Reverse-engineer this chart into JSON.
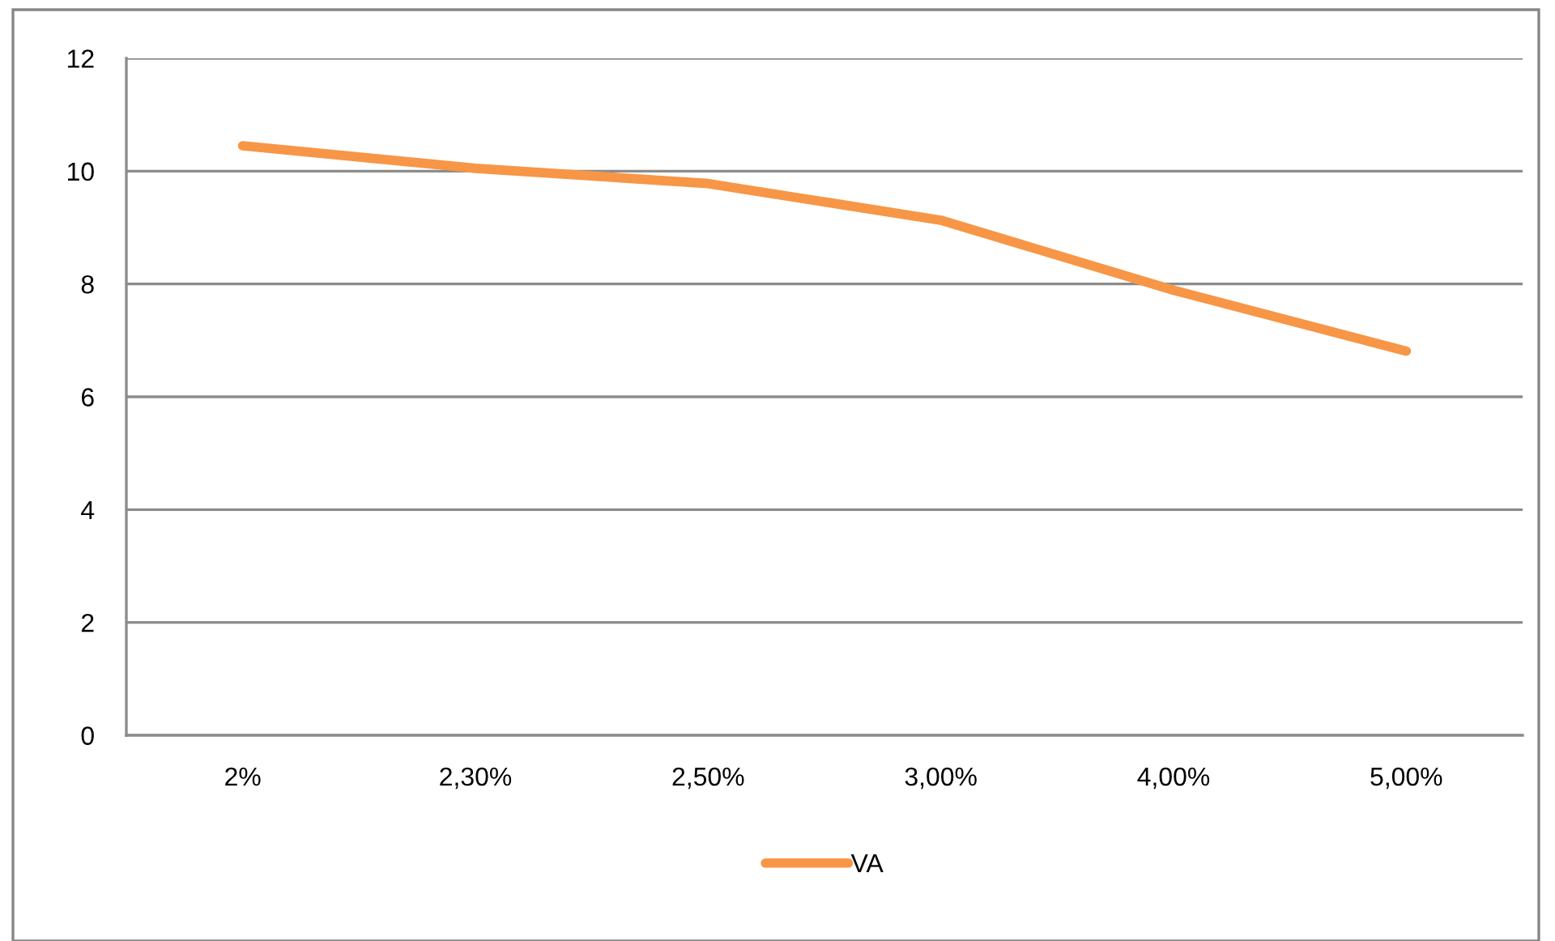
{
  "chart_data": {
    "type": "line",
    "categories": [
      "2%",
      "2,30%",
      "2,50%",
      "3,00%",
      "4,00%",
      "5,00%"
    ],
    "series": [
      {
        "name": "VA",
        "color": "#f79646",
        "values": [
          10.45,
          10.05,
          9.78,
          9.13,
          7.89,
          6.81
        ]
      }
    ],
    "ylim": [
      0,
      12
    ],
    "yticks": [
      0,
      2,
      4,
      6,
      8,
      10,
      12
    ],
    "grid": "y",
    "legend": "bottom"
  }
}
